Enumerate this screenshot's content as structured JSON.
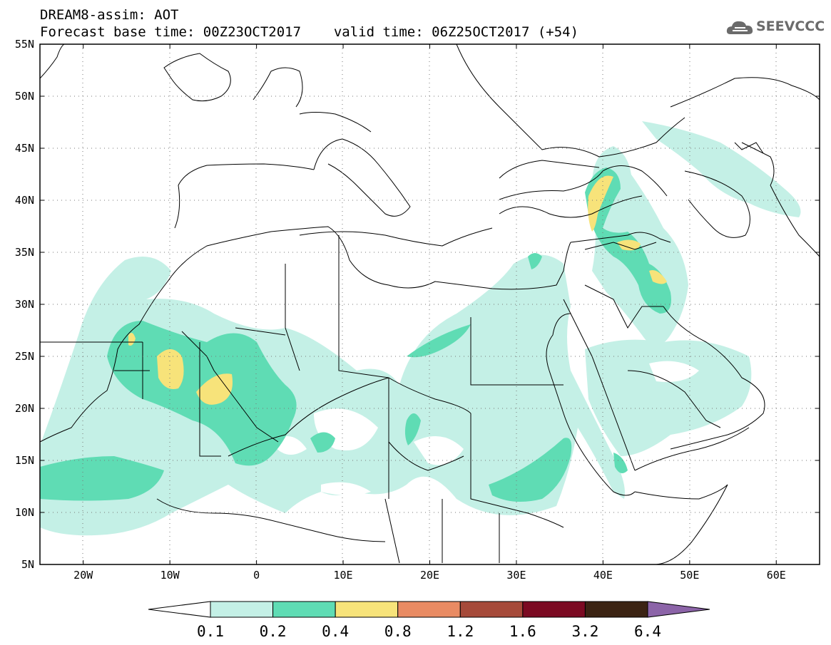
{
  "header": {
    "title": "DREAM8-assim: AOT",
    "base_time_label": "Forecast base time:",
    "base_time": "00Z23OCT2017",
    "valid_time_label": "valid time:",
    "valid_time": "06Z25OCT2017 (+54)"
  },
  "logo": {
    "text": "SEEVCCC",
    "icon": "cloud-icon"
  },
  "map": {
    "lon_labels": [
      "20W",
      "10W",
      "0",
      "10E",
      "20E",
      "30E",
      "40E",
      "50E",
      "60E"
    ],
    "lat_labels": [
      "55N",
      "50N",
      "45N",
      "40N",
      "35N",
      "30N",
      "25N",
      "20N",
      "15N",
      "10N",
      "5N"
    ],
    "lon_range": [
      -25,
      65
    ],
    "lat_range": [
      5,
      55
    ],
    "grid": "dotted"
  },
  "colorbar": {
    "levels": [
      "0.1",
      "0.2",
      "0.4",
      "0.8",
      "1.2",
      "1.6",
      "3.2",
      "6.4"
    ],
    "colors": [
      "#ffffff",
      "#c4f0e6",
      "#5fdcb4",
      "#f7e37a",
      "#e98b63",
      "#a64a3a",
      "#7b0a22",
      "#3b2313",
      "#8c64a8"
    ]
  }
}
